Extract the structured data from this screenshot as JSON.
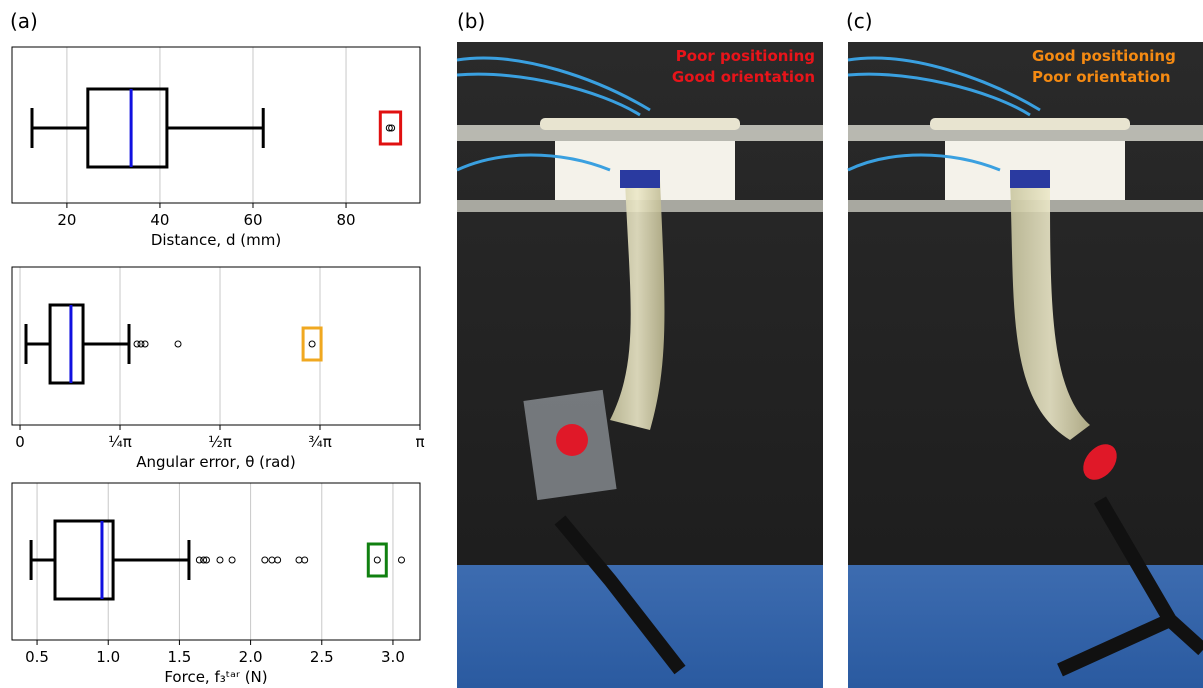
{
  "panel_labels": [
    "(a)",
    "(b)",
    "(c)"
  ],
  "photo_b": {
    "line1": "Poor positioning",
    "line2": "Good orientation",
    "color": "#e8141a"
  },
  "photo_c": {
    "line1": "Good positioning",
    "line2": "Poor orientation",
    "color": "#f58a12"
  },
  "chart_data": [
    {
      "type": "box",
      "xlabel": "Distance, d (mm)",
      "xlim": [
        8.2,
        95.9
      ],
      "xticks": [
        20,
        40,
        60,
        80
      ],
      "grid": true,
      "whisker_low": 12.5,
      "q1": 24.5,
      "median": 33.8,
      "q3": 41.5,
      "whisker_high": 62.2,
      "outliers": [],
      "highlighted_outliers": [
        89.3,
        89.8
      ],
      "highlight_color": "#e01010",
      "median_color": "#1010e0"
    },
    {
      "type": "box",
      "xlabel": "Angular error, θ (rad)",
      "xlim": [
        -0.063,
        3.1416
      ],
      "xticks": [
        0,
        {
          "value": 0.7854,
          "label": "¼π"
        },
        {
          "value": 1.5708,
          "label": "½π"
        },
        {
          "value": 2.3562,
          "label": "¾π"
        },
        {
          "value": 3.1416,
          "label": "π"
        }
      ],
      "grid": true,
      "whisker_low": 0.047,
      "q1": 0.236,
      "median": 0.4,
      "q3": 0.495,
      "whisker_high": 0.856,
      "outliers": [
        0.919,
        0.95,
        0.982,
        1.241
      ],
      "highlighted_outliers": [
        2.294
      ],
      "highlight_color": "#f0a820",
      "median_color": "#1010e0"
    },
    {
      "type": "box",
      "xlabel": "Force, f₃ᵗᵃʳ (N)",
      "xlim": [
        0.324,
        3.19
      ],
      "xticks": [
        0.5,
        {
          "value": 1,
          "label": "1.0"
        },
        1.5,
        {
          "value": 2,
          "label": "2.0"
        },
        2.5,
        {
          "value": 3,
          "label": "3.0"
        }
      ],
      "grid": true,
      "whisker_low": 0.458,
      "q1": 0.626,
      "median": 0.956,
      "q3": 1.034,
      "whisker_high": 1.567,
      "outliers": [
        1.64,
        1.67,
        1.69,
        1.785,
        1.87,
        2.1,
        2.15,
        2.19,
        2.34,
        2.38,
        3.06
      ],
      "highlighted_outliers": [
        2.89
      ],
      "highlight_color": "#108010",
      "median_color": "#1010e0"
    }
  ]
}
